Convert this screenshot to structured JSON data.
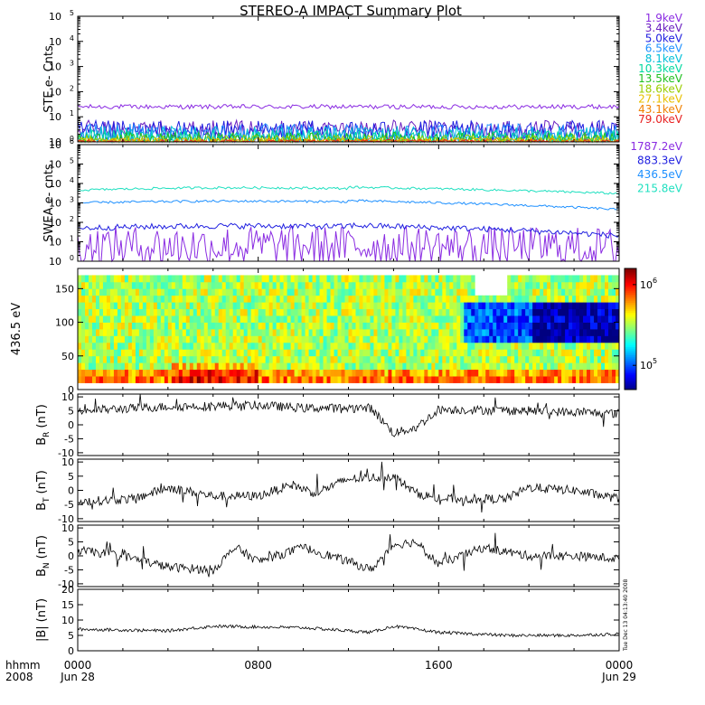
{
  "title": "STEREO-A IMPACT Summary Plot",
  "chart_data": {
    "type": "line",
    "title": "STEREO-A IMPACT Summary Plot",
    "x_axis": {
      "row_label": "hhmm",
      "year_label": "2008",
      "ticks": [
        {
          "value": 0,
          "label": "0000",
          "date": "Jun 28"
        },
        {
          "value": 8,
          "label": "0800",
          "date": ""
        },
        {
          "value": 16,
          "label": "1600",
          "date": ""
        },
        {
          "value": 24,
          "label": "0000",
          "date": "Jun 29"
        }
      ],
      "range_hours": [
        0,
        24
      ]
    },
    "footer_timestamp": "Tue Dec 13 04:13:40 2008",
    "panels": [
      {
        "id": "ste",
        "ylabel": "STE e- Cnts",
        "scale": "log",
        "ylim": [
          1,
          100000
        ],
        "tick_exponents": [
          "0",
          "1",
          "2",
          "3",
          "4",
          "5"
        ],
        "series": [
          {
            "name": "1.9keV",
            "color": "#8a2be2",
            "level": 25,
            "noise": 0.03
          },
          {
            "name": "3.4keV",
            "color": "#6a1fc0",
            "level": 3.2,
            "noise": 0.12
          },
          {
            "name": "5.0keV",
            "color": "#2020e0",
            "level": 2.5,
            "noise": 0.15
          },
          {
            "name": "6.5keV",
            "color": "#1e90ff",
            "level": 1.9,
            "noise": 0.15
          },
          {
            "name": "8.1keV",
            "color": "#00bfd8",
            "level": 1.5,
            "noise": 0.15
          },
          {
            "name": "10.3keV",
            "color": "#00d8a0",
            "level": 1.3,
            "noise": 0.12
          },
          {
            "name": "13.5keV",
            "color": "#20c020",
            "level": 1.2,
            "noise": 0.1
          },
          {
            "name": "18.6keV",
            "color": "#9acd00",
            "level": 1.1,
            "noise": 0.08
          },
          {
            "name": "27.1keV",
            "color": "#e8c000",
            "level": 1.05,
            "noise": 0.05
          },
          {
            "name": "43.1keV",
            "color": "#f08000",
            "level": 1.02,
            "noise": 0.04
          },
          {
            "name": "79.0keV",
            "color": "#e82020",
            "level": 1.01,
            "noise": 0.03
          }
        ]
      },
      {
        "id": "swea",
        "ylabel": "SWEA e- cnts",
        "scale": "log",
        "ylim": [
          1,
          1000000
        ],
        "tick_exponents": [
          "0",
          "1",
          "2",
          "3",
          "4",
          "5",
          "6"
        ],
        "series": [
          {
            "name": "1787.2eV",
            "color": "#8a2be2",
            "start": 6,
            "mid": 6,
            "end": 5,
            "noise": 0.35
          },
          {
            "name": "883.3eV",
            "color": "#2020e0",
            "start": 50,
            "mid": 70,
            "end": 20,
            "noise": 0.05
          },
          {
            "name": "436.5eV",
            "color": "#1e90ff",
            "start": 1000,
            "mid": 1300,
            "end": 450,
            "noise": 0.02
          },
          {
            "name": "215.8eV",
            "color": "#20e0c0",
            "start": 4500,
            "mid": 6500,
            "end": 3000,
            "noise": 0.02
          }
        ]
      },
      {
        "id": "pad",
        "ylabel": "436.5 eV",
        "type": "heatmap",
        "ylim": [
          0,
          180
        ],
        "yticks": [
          "0",
          "50",
          "100",
          "150"
        ],
        "colorbar": {
          "min_exp": 4.7,
          "max_exp": 6.2,
          "labels": [
            {
              "base": "10",
              "exp": "6",
              "value_exp": 6
            },
            {
              "base": "10",
              "exp": "5",
              "value_exp": 5
            }
          ]
        }
      },
      {
        "id": "br",
        "ylabel": "B",
        "ylabel_sub": "R",
        "ylabel_unit": "(nT)",
        "ylim": [
          -11,
          11
        ],
        "yticks": [
          "10",
          "5",
          "0",
          "-5",
          "-10"
        ],
        "profile": [
          [
            0,
            5
          ],
          [
            4,
            6.5
          ],
          [
            8,
            7
          ],
          [
            10,
            6
          ],
          [
            13,
            6
          ],
          [
            14,
            -3
          ],
          [
            15,
            -1
          ],
          [
            16,
            5.5
          ],
          [
            20,
            5
          ],
          [
            24,
            4
          ]
        ]
      },
      {
        "id": "bt",
        "ylabel": "B",
        "ylabel_sub": "T",
        "ylabel_unit": "(nT)",
        "ylim": [
          -11,
          11
        ],
        "yticks": [
          "10",
          "5",
          "0",
          "-5",
          "-10"
        ],
        "profile": [
          [
            0,
            -4
          ],
          [
            2.5,
            -3
          ],
          [
            4,
            1
          ],
          [
            6,
            -2
          ],
          [
            8,
            -2
          ],
          [
            9.5,
            2
          ],
          [
            10.5,
            -1
          ],
          [
            12,
            4
          ],
          [
            14,
            5
          ],
          [
            15,
            -1
          ],
          [
            16,
            -3
          ],
          [
            19,
            -3
          ],
          [
            20,
            1
          ],
          [
            22,
            0
          ],
          [
            24,
            -3
          ]
        ]
      },
      {
        "id": "bn",
        "ylabel": "B",
        "ylabel_sub": "N",
        "ylabel_unit": "(nT)",
        "ylim": [
          -11,
          11
        ],
        "yticks": [
          "10",
          "5",
          "0",
          "-5",
          "-10"
        ],
        "profile": [
          [
            0,
            2
          ],
          [
            2,
            0
          ],
          [
            4,
            -4
          ],
          [
            6,
            -5
          ],
          [
            7,
            3
          ],
          [
            8,
            -2
          ],
          [
            10,
            3
          ],
          [
            12,
            -2
          ],
          [
            13,
            -5
          ],
          [
            14,
            4
          ],
          [
            15,
            5
          ],
          [
            16,
            -3
          ],
          [
            18,
            3
          ],
          [
            20,
            0
          ],
          [
            22,
            0
          ],
          [
            24,
            -1
          ]
        ]
      },
      {
        "id": "bmag",
        "ylabel": "|B|",
        "ylabel_unit": "(nT)",
        "ylim": [
          0,
          20
        ],
        "yticks": [
          "20",
          "15",
          "10",
          "5",
          "0"
        ],
        "profile": [
          [
            0,
            7
          ],
          [
            4,
            6.5
          ],
          [
            6,
            8
          ],
          [
            10,
            7.5
          ],
          [
            13,
            6
          ],
          [
            14,
            8
          ],
          [
            16,
            6
          ],
          [
            19,
            5
          ],
          [
            22,
            5
          ],
          [
            24,
            5.5
          ]
        ]
      }
    ]
  }
}
